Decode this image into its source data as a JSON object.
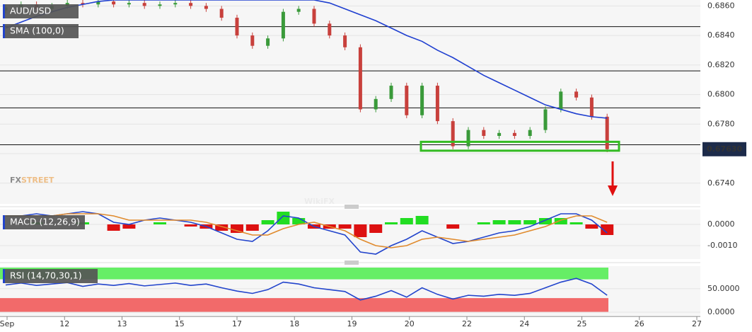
{
  "chart_data": [
    {
      "type": "candlestick",
      "title": "AUD/USD",
      "open": [
        0.6857,
        0.6859,
        0.6861,
        0.6858,
        0.686,
        0.6862,
        0.6861,
        0.6863,
        0.6861,
        0.6862,
        0.686,
        0.6861,
        0.6862,
        0.686,
        0.6858,
        0.6852,
        0.684,
        0.6833,
        0.6838,
        0.6856,
        0.6858,
        0.6848,
        0.684,
        0.6832,
        0.679,
        0.6797,
        0.6806,
        0.6786,
        0.6806,
        0.6782,
        0.6765,
        0.6776,
        0.6772,
        0.6774,
        0.6772,
        0.6776,
        0.679,
        0.6802,
        0.6798,
        0.6785
      ],
      "high": [
        0.6861,
        0.6863,
        0.6863,
        0.6862,
        0.6864,
        0.6864,
        0.6865,
        0.6865,
        0.6864,
        0.6864,
        0.6863,
        0.6864,
        0.6864,
        0.6862,
        0.686,
        0.6854,
        0.6842,
        0.684,
        0.6858,
        0.686,
        0.686,
        0.685,
        0.6842,
        0.6834,
        0.6799,
        0.6808,
        0.6808,
        0.6808,
        0.6808,
        0.6784,
        0.6778,
        0.6778,
        0.6776,
        0.6776,
        0.6778,
        0.6792,
        0.6804,
        0.6804,
        0.68,
        0.6787
      ],
      "low": [
        0.6855,
        0.6857,
        0.6856,
        0.6856,
        0.6858,
        0.6859,
        0.6859,
        0.6859,
        0.6859,
        0.6858,
        0.6858,
        0.6859,
        0.6858,
        0.6856,
        0.685,
        0.6838,
        0.6831,
        0.6831,
        0.6836,
        0.6854,
        0.6846,
        0.6838,
        0.683,
        0.6788,
        0.6788,
        0.6795,
        0.6784,
        0.6784,
        0.678,
        0.6763,
        0.6763,
        0.677,
        0.677,
        0.677,
        0.677,
        0.6774,
        0.6788,
        0.6796,
        0.6783,
        0.6761
      ],
      "close": [
        0.6859,
        0.6861,
        0.6858,
        0.686,
        0.6862,
        0.6861,
        0.6863,
        0.6861,
        0.6862,
        0.686,
        0.6861,
        0.6862,
        0.686,
        0.6858,
        0.6852,
        0.684,
        0.6833,
        0.6838,
        0.6856,
        0.6858,
        0.6848,
        0.684,
        0.6832,
        0.679,
        0.6797,
        0.6806,
        0.6786,
        0.6806,
        0.6782,
        0.6765,
        0.6776,
        0.6772,
        0.6774,
        0.6772,
        0.6776,
        0.679,
        0.6802,
        0.6798,
        0.6785,
        0.6763
      ],
      "up_color": "#3a9a3a",
      "down_color": "#c8403c",
      "series": [
        {
          "name": "SMA (100,0)",
          "color": "#1f3fd0",
          "values": [
            0.6845,
            0.6849,
            0.6853,
            0.6856,
            0.6859,
            0.6861,
            0.6863,
            0.6864,
            0.6864,
            0.6864,
            0.6864,
            0.6864,
            0.6864,
            0.6864,
            0.6864,
            0.6864,
            0.6864,
            0.6864,
            0.6864,
            0.6864,
            0.6864,
            0.6862,
            0.6858,
            0.6854,
            0.685,
            0.6845,
            0.684,
            0.6836,
            0.683,
            0.6825,
            0.6819,
            0.6813,
            0.6808,
            0.6803,
            0.6798,
            0.6793,
            0.679,
            0.6787,
            0.6785,
            0.6784
          ]
        }
      ],
      "levels": [
        0.6846,
        0.6816,
        0.6791,
        0.6766
      ],
      "support_zone": [
        0.6762,
        0.6768
      ],
      "zone_color": "#33bb22",
      "last_price": {
        "value": 0.6763,
        "label": "0.67630"
      },
      "ylim": [
        0.6726,
        0.6864
      ],
      "yticks": [
        {
          "value": 0.674,
          "label": "0.6740"
        },
        {
          "value": 0.676,
          "label": "0.6760"
        },
        {
          "value": 0.678,
          "label": "0.6780"
        },
        {
          "value": 0.68,
          "label": "0.6800"
        },
        {
          "value": 0.682,
          "label": "0.6820"
        },
        {
          "value": 0.684,
          "label": "0.6840"
        },
        {
          "value": 0.686,
          "label": "0.6860"
        }
      ],
      "grid": true,
      "watermark": {
        "fx": "FX",
        "street": "STREET",
        "brand": "WikiFX"
      }
    },
    {
      "type": "macd",
      "title": "MACD (12,26,9)",
      "series": [
        {
          "color": "#2244cc",
          "values": [
            0.0004,
            0.0004,
            0.0005,
            0.0004,
            0.0005,
            0.0006,
            0.0005,
            0.0001,
            0.0,
            0.0002,
            0.0003,
            0.0002,
            0.0001,
            -0.0001,
            -0.0004,
            -0.0007,
            -0.0008,
            -0.0003,
            0.0004,
            0.0003,
            -0.0001,
            -0.0003,
            -0.0005,
            -0.0013,
            -0.0014,
            -0.001,
            -0.0007,
            -0.0003,
            -0.0006,
            -0.0009,
            -0.0008,
            -0.0006,
            -0.0004,
            -0.0003,
            -0.0001,
            0.0002,
            0.0005,
            0.0005,
            0.0002,
            -0.0004
          ]
        },
        {
          "color": "#e08a2c",
          "values": [
            0.0004,
            0.0004,
            0.0004,
            0.0004,
            0.0005,
            0.0005,
            0.0005,
            0.0004,
            0.0002,
            0.0002,
            0.0002,
            0.0002,
            0.0002,
            0.0001,
            -0.0001,
            -0.0003,
            -0.0005,
            -0.0005,
            -0.0002,
            0.0,
            0.0001,
            -0.0001,
            -0.0003,
            -0.0007,
            -0.001,
            -0.0011,
            -0.001,
            -0.0007,
            -0.0006,
            -0.0007,
            -0.0008,
            -0.0007,
            -0.0006,
            -0.0005,
            -0.0003,
            -0.0001,
            0.0002,
            0.0004,
            0.0004,
            0.0001
          ]
        }
      ],
      "histogram": [
        0.0,
        0.0,
        0.0001,
        0.0,
        0.0,
        0.0001,
        0.0,
        -0.0003,
        -0.0002,
        0.0,
        0.0001,
        0.0,
        -0.0001,
        -0.0002,
        -0.0003,
        -0.0004,
        -0.0003,
        0.0002,
        0.0006,
        0.0003,
        -0.0002,
        -0.0002,
        -0.0002,
        -0.0006,
        -0.0004,
        0.0001,
        0.0003,
        0.0004,
        0.0,
        -0.0002,
        0.0,
        0.0001,
        0.0002,
        0.0002,
        0.0002,
        0.0003,
        0.0003,
        0.0001,
        -0.0002,
        -0.0005
      ],
      "up_color": "#22dd22",
      "down_color": "#dd1111",
      "ylim": [
        -0.0016,
        0.0008
      ],
      "yticks": [
        {
          "value": -0.001,
          "label": "-0.0010"
        },
        {
          "value": 0,
          "label": "0.0000"
        }
      ],
      "grid": true
    },
    {
      "type": "rsi",
      "title": "RSI (14,70,30,1)",
      "series": [
        {
          "color": "#2244cc",
          "values": [
            58,
            62,
            57,
            60,
            63,
            55,
            60,
            57,
            61,
            56,
            59,
            62,
            57,
            60,
            52,
            45,
            40,
            48,
            64,
            60,
            52,
            48,
            44,
            26,
            34,
            46,
            32,
            52,
            38,
            28,
            36,
            34,
            38,
            36,
            40,
            52,
            64,
            72,
            60,
            36
          ]
        }
      ],
      "overbought": 70,
      "oversold": 30,
      "overbought_color": "#66ee66",
      "oversold_color": "#f26a6a",
      "ylim": [
        -6,
        98
      ],
      "yticks": [
        {
          "value": 0,
          "label": "0.0000"
        },
        {
          "value": 50,
          "label": "50.0000"
        }
      ],
      "grid": true,
      "x_labels": [
        "Sep",
        "12",
        "13",
        "15",
        "17",
        "18",
        "19",
        "20",
        "22",
        "24",
        "25",
        "26",
        "27"
      ]
    }
  ]
}
